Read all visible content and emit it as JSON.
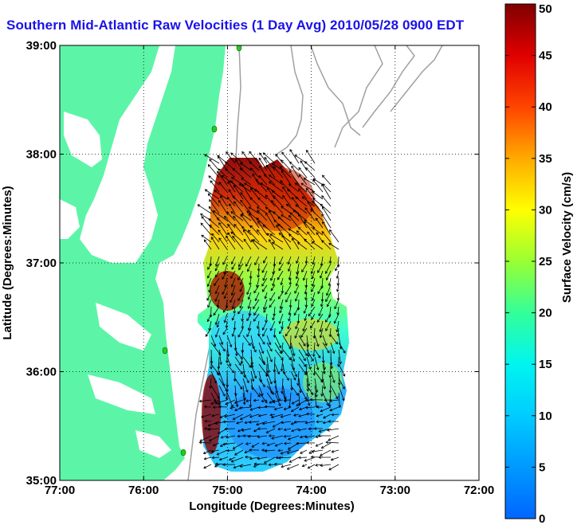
{
  "title": "Southern Mid-Atlantic Raw Velocities (1 Day Avg) 2010/05/28 0900 EDT",
  "xaxis": {
    "label": "Longitude (Degrees:Minutes)",
    "ticks": [
      "77:00",
      "76:00",
      "75:00",
      "74:00",
      "73:00",
      "72:00"
    ]
  },
  "yaxis": {
    "label": "Latitude (Degrees:Minutes)",
    "ticks": [
      "39:00",
      "38:00",
      "37:00",
      "36:00",
      "35:00"
    ]
  },
  "colorbar": {
    "label": "Surface Velocity (cm/s)",
    "ticks": [
      "50",
      "45",
      "40",
      "35",
      "30",
      "25",
      "20",
      "15",
      "10",
      "5",
      "0"
    ],
    "min": 0,
    "max": 50
  },
  "colors": {
    "land": "#5cf5a8",
    "title": "#1a12e8",
    "station": "#22cc22",
    "bathymetry": "#a0a0a0"
  },
  "map_extent": {
    "lon": [
      -77,
      -72
    ],
    "lat": [
      35,
      39
    ]
  },
  "grid": true
}
